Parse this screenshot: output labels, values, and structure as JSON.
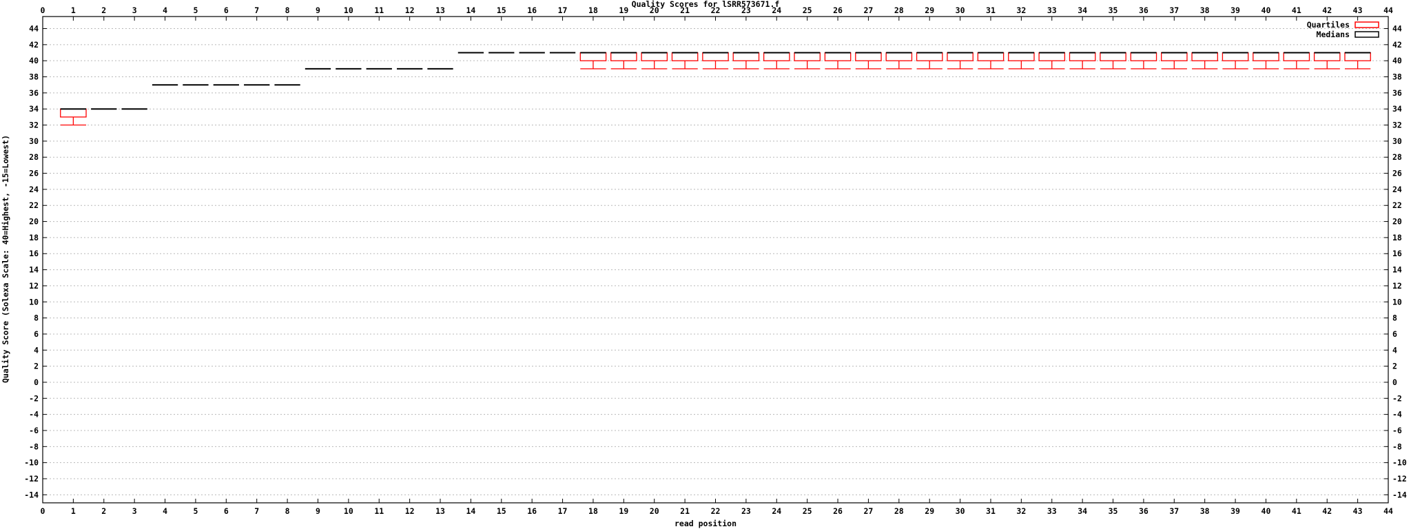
{
  "colors": {
    "quartiles": "#ff0000",
    "medians": "#000000",
    "grid": "#b8b8b8",
    "background": "#ffffff"
  },
  "chart_data": {
    "type": "box",
    "title": "Quality Scores for lSRR573671.f",
    "xlabel": "read position",
    "ylabel": "Quality Score (Solexa Scale: 40=Highest, -15=Lowest)",
    "xlim": [
      0,
      44
    ],
    "ylim": [
      -15,
      45.5
    ],
    "x_ticks": [
      0,
      1,
      2,
      3,
      4,
      5,
      6,
      7,
      8,
      9,
      10,
      11,
      12,
      13,
      14,
      15,
      16,
      17,
      18,
      19,
      20,
      21,
      22,
      23,
      24,
      25,
      26,
      27,
      28,
      29,
      30,
      31,
      32,
      33,
      34,
      35,
      36,
      37,
      38,
      39,
      40,
      41,
      42,
      43,
      44
    ],
    "y_ticks": [
      -14,
      -12,
      -10,
      -8,
      -6,
      -4,
      -2,
      0,
      2,
      4,
      6,
      8,
      10,
      12,
      14,
      16,
      18,
      20,
      22,
      24,
      26,
      28,
      30,
      32,
      34,
      36,
      38,
      40,
      42,
      44
    ],
    "grid": true,
    "axes_mirrored": true,
    "legend": {
      "position": "top-right",
      "entries": [
        {
          "label": "Quartiles",
          "color": "#ff0000"
        },
        {
          "label": "Medians",
          "color": "#000000"
        }
      ]
    },
    "positions": [
      {
        "x": 1,
        "q1": 33,
        "median": 34,
        "q3": 34,
        "whisker_low": 32,
        "whisker_high": 34
      },
      {
        "x": 2,
        "q1": 34,
        "median": 34,
        "q3": 34,
        "whisker_low": 34,
        "whisker_high": 34
      },
      {
        "x": 3,
        "q1": 34,
        "median": 34,
        "q3": 34,
        "whisker_low": 34,
        "whisker_high": 34
      },
      {
        "x": 4,
        "q1": 37,
        "median": 37,
        "q3": 37,
        "whisker_low": 37,
        "whisker_high": 37
      },
      {
        "x": 5,
        "q1": 37,
        "median": 37,
        "q3": 37,
        "whisker_low": 37,
        "whisker_high": 37
      },
      {
        "x": 6,
        "q1": 37,
        "median": 37,
        "q3": 37,
        "whisker_low": 37,
        "whisker_high": 37
      },
      {
        "x": 7,
        "q1": 37,
        "median": 37,
        "q3": 37,
        "whisker_low": 37,
        "whisker_high": 37
      },
      {
        "x": 8,
        "q1": 37,
        "median": 37,
        "q3": 37,
        "whisker_low": 37,
        "whisker_high": 37
      },
      {
        "x": 9,
        "q1": 39,
        "median": 39,
        "q3": 39,
        "whisker_low": 39,
        "whisker_high": 39
      },
      {
        "x": 10,
        "q1": 39,
        "median": 39,
        "q3": 39,
        "whisker_low": 39,
        "whisker_high": 39
      },
      {
        "x": 11,
        "q1": 39,
        "median": 39,
        "q3": 39,
        "whisker_low": 39,
        "whisker_high": 39
      },
      {
        "x": 12,
        "q1": 39,
        "median": 39,
        "q3": 39,
        "whisker_low": 39,
        "whisker_high": 39
      },
      {
        "x": 13,
        "q1": 39,
        "median": 39,
        "q3": 39,
        "whisker_low": 39,
        "whisker_high": 39
      },
      {
        "x": 14,
        "q1": 41,
        "median": 41,
        "q3": 41,
        "whisker_low": 41,
        "whisker_high": 41
      },
      {
        "x": 15,
        "q1": 41,
        "median": 41,
        "q3": 41,
        "whisker_low": 41,
        "whisker_high": 41
      },
      {
        "x": 16,
        "q1": 41,
        "median": 41,
        "q3": 41,
        "whisker_low": 41,
        "whisker_high": 41
      },
      {
        "x": 17,
        "q1": 41,
        "median": 41,
        "q3": 41,
        "whisker_low": 41,
        "whisker_high": 41
      },
      {
        "x": 18,
        "q1": 40,
        "median": 41,
        "q3": 41,
        "whisker_low": 39,
        "whisker_high": 41
      },
      {
        "x": 19,
        "q1": 40,
        "median": 41,
        "q3": 41,
        "whisker_low": 39,
        "whisker_high": 41
      },
      {
        "x": 20,
        "q1": 40,
        "median": 41,
        "q3": 41,
        "whisker_low": 39,
        "whisker_high": 41
      },
      {
        "x": 21,
        "q1": 40,
        "median": 41,
        "q3": 41,
        "whisker_low": 39,
        "whisker_high": 41
      },
      {
        "x": 22,
        "q1": 40,
        "median": 41,
        "q3": 41,
        "whisker_low": 39,
        "whisker_high": 41
      },
      {
        "x": 23,
        "q1": 40,
        "median": 41,
        "q3": 41,
        "whisker_low": 39,
        "whisker_high": 41
      },
      {
        "x": 24,
        "q1": 40,
        "median": 41,
        "q3": 41,
        "whisker_low": 39,
        "whisker_high": 41
      },
      {
        "x": 25,
        "q1": 40,
        "median": 41,
        "q3": 41,
        "whisker_low": 39,
        "whisker_high": 41
      },
      {
        "x": 26,
        "q1": 40,
        "median": 41,
        "q3": 41,
        "whisker_low": 39,
        "whisker_high": 41
      },
      {
        "x": 27,
        "q1": 40,
        "median": 41,
        "q3": 41,
        "whisker_low": 39,
        "whisker_high": 41
      },
      {
        "x": 28,
        "q1": 40,
        "median": 41,
        "q3": 41,
        "whisker_low": 39,
        "whisker_high": 41
      },
      {
        "x": 29,
        "q1": 40,
        "median": 41,
        "q3": 41,
        "whisker_low": 39,
        "whisker_high": 41
      },
      {
        "x": 30,
        "q1": 40,
        "median": 41,
        "q3": 41,
        "whisker_low": 39,
        "whisker_high": 41
      },
      {
        "x": 31,
        "q1": 40,
        "median": 41,
        "q3": 41,
        "whisker_low": 39,
        "whisker_high": 41
      },
      {
        "x": 32,
        "q1": 40,
        "median": 41,
        "q3": 41,
        "whisker_low": 39,
        "whisker_high": 41
      },
      {
        "x": 33,
        "q1": 40,
        "median": 41,
        "q3": 41,
        "whisker_low": 39,
        "whisker_high": 41
      },
      {
        "x": 34,
        "q1": 40,
        "median": 41,
        "q3": 41,
        "whisker_low": 39,
        "whisker_high": 41
      },
      {
        "x": 35,
        "q1": 40,
        "median": 41,
        "q3": 41,
        "whisker_low": 39,
        "whisker_high": 41
      },
      {
        "x": 36,
        "q1": 40,
        "median": 41,
        "q3": 41,
        "whisker_low": 39,
        "whisker_high": 41
      },
      {
        "x": 37,
        "q1": 40,
        "median": 41,
        "q3": 41,
        "whisker_low": 39,
        "whisker_high": 41
      },
      {
        "x": 38,
        "q1": 40,
        "median": 41,
        "q3": 41,
        "whisker_low": 39,
        "whisker_high": 41
      },
      {
        "x": 39,
        "q1": 40,
        "median": 41,
        "q3": 41,
        "whisker_low": 39,
        "whisker_high": 41
      },
      {
        "x": 40,
        "q1": 40,
        "median": 41,
        "q3": 41,
        "whisker_low": 39,
        "whisker_high": 41
      },
      {
        "x": 41,
        "q1": 40,
        "median": 41,
        "q3": 41,
        "whisker_low": 39,
        "whisker_high": 41
      },
      {
        "x": 42,
        "q1": 40,
        "median": 41,
        "q3": 41,
        "whisker_low": 39,
        "whisker_high": 41
      },
      {
        "x": 43,
        "q1": 40,
        "median": 41,
        "q3": 41,
        "whisker_low": 39,
        "whisker_high": 41
      }
    ]
  }
}
